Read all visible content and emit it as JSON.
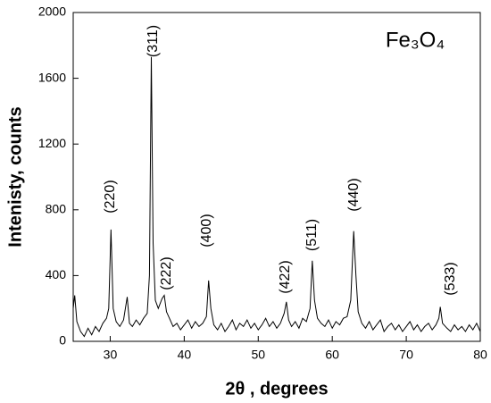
{
  "chart_data": {
    "type": "line",
    "title": "Fe₃O₄",
    "x_label": "2θ , degrees",
    "y_label": "Intenisty, counts",
    "x": [
      25,
      25.2,
      25.5,
      26,
      26.5,
      27,
      27.5,
      28,
      28.5,
      29,
      29.5,
      29.8,
      30.1,
      30.4,
      30.8,
      31.3,
      31.8,
      32.3,
      32.6,
      33,
      33.5,
      34,
      34.5,
      35,
      35.3,
      35.55,
      35.8,
      36.1,
      36.5,
      37,
      37.3,
      37.6,
      38,
      38.5,
      39,
      39.5,
      40,
      40.5,
      41,
      41.5,
      42,
      42.5,
      43,
      43.3,
      43.6,
      44,
      44.5,
      45,
      45.5,
      46,
      46.5,
      47,
      47.5,
      48,
      48.5,
      49,
      49.5,
      50,
      50.5,
      51,
      51.5,
      52,
      52.5,
      53,
      53.5,
      53.8,
      54.1,
      54.5,
      55,
      55.5,
      56,
      56.5,
      57,
      57.3,
      57.6,
      58,
      58.5,
      59,
      59.5,
      60,
      60.5,
      61,
      61.5,
      62,
      62.5,
      62.9,
      63.2,
      63.5,
      64,
      64.5,
      65,
      65.5,
      66,
      66.5,
      67,
      67.5,
      68,
      68.5,
      69,
      69.5,
      70,
      70.5,
      71,
      71.5,
      72,
      72.5,
      73,
      73.5,
      74,
      74.4,
      74.6,
      74.9,
      75.5,
      76,
      76.5,
      77,
      77.5,
      78,
      78.5,
      79,
      79.5,
      80
    ],
    "series": [
      {
        "name": "Fe₃O₄",
        "color": "#000000",
        "values": [
          200,
          280,
          120,
          60,
          30,
          80,
          40,
          90,
          60,
          110,
          140,
          200,
          680,
          200,
          120,
          90,
          130,
          270,
          110,
          90,
          130,
          100,
          140,
          170,
          400,
          1730,
          600,
          250,
          200,
          260,
          280,
          180,
          140,
          90,
          110,
          70,
          100,
          130,
          80,
          120,
          90,
          110,
          150,
          370,
          200,
          100,
          70,
          110,
          60,
          90,
          130,
          70,
          110,
          90,
          130,
          80,
          110,
          70,
          100,
          140,
          90,
          120,
          80,
          110,
          170,
          240,
          130,
          90,
          120,
          80,
          140,
          120,
          200,
          490,
          250,
          140,
          110,
          90,
          130,
          80,
          120,
          100,
          140,
          150,
          250,
          670,
          400,
          180,
          110,
          80,
          120,
          70,
          100,
          130,
          60,
          90,
          110,
          70,
          100,
          60,
          90,
          120,
          70,
          100,
          60,
          90,
          110,
          70,
          100,
          140,
          210,
          110,
          80,
          60,
          100,
          70,
          90,
          60,
          100,
          70,
          110,
          60
        ]
      }
    ],
    "annotations": [
      "(220)",
      "(311)",
      "(222)",
      "(400)",
      "(422)",
      "(511)",
      "(440)",
      "(533)"
    ],
    "xlim": [
      25,
      80
    ],
    "xticks": [
      30,
      40,
      50,
      60,
      70,
      80
    ],
    "ylim": [
      0,
      2000
    ],
    "yticks": [
      0,
      400,
      800,
      1200,
      1600,
      2000
    ]
  }
}
